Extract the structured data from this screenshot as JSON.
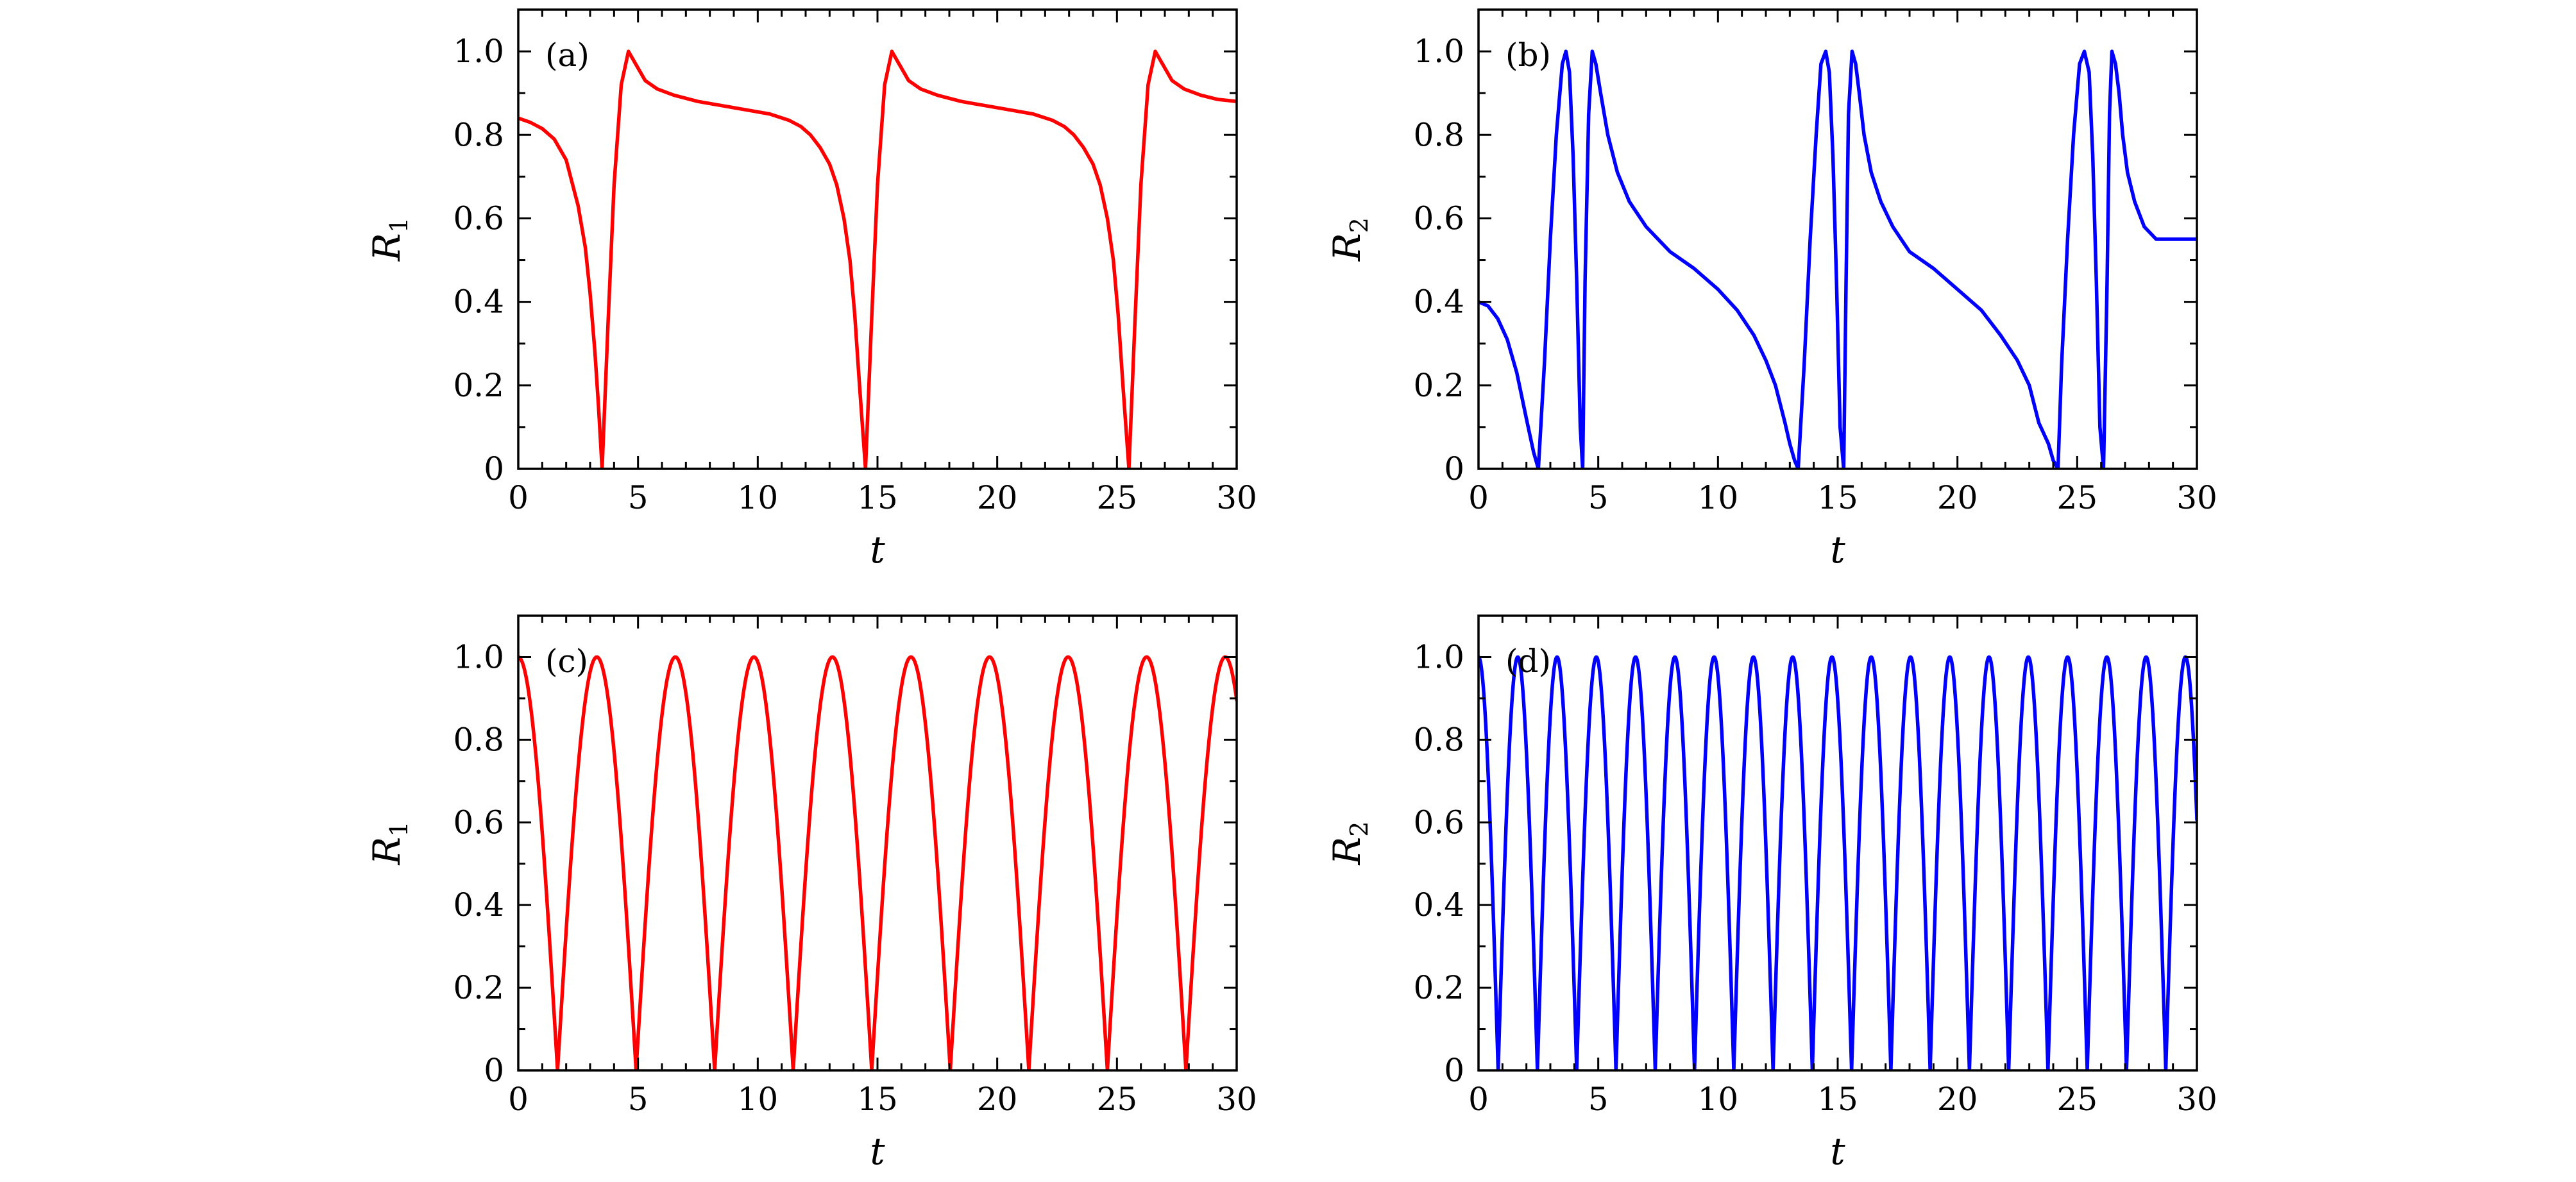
{
  "chart_data": [
    {
      "type": "line",
      "panel_label": "(a)",
      "xlabel": "t",
      "ylabel_base": "R",
      "ylabel_sub": "1",
      "xlim": [
        0,
        30
      ],
      "ylim": [
        0,
        1.1
      ],
      "x_ticks": [
        "0",
        "5",
        "10",
        "15",
        "20",
        "25",
        "30"
      ],
      "y_ticks": [
        "0",
        "0.2",
        "0.4",
        "0.6",
        "0.8",
        "1.0"
      ],
      "color": "#ff0000",
      "series": [
        {
          "x": [
            0,
            0.5,
            1,
            1.5,
            2,
            2.5,
            2.8,
            3.0,
            3.2,
            3.35,
            3.5,
            3.75,
            4.0,
            4.3,
            4.6,
            4.9,
            5.3,
            5.8,
            6.5,
            7.5,
            8.5,
            9.5,
            10.5,
            11.3,
            11.8,
            12.2,
            12.6,
            13.0,
            13.3,
            13.6,
            13.85,
            14.05,
            14.25,
            14.4,
            14.5,
            14.75,
            15.0,
            15.3,
            15.6,
            15.9,
            16.3,
            16.8,
            17.5,
            18.5,
            19.5,
            20.5,
            21.5,
            22.3,
            22.8,
            23.2,
            23.6,
            24.0,
            24.3,
            24.6,
            24.85,
            25.05,
            25.25,
            25.4,
            25.5,
            25.75,
            26.0,
            26.3,
            26.6,
            26.9,
            27.3,
            27.8,
            28.5,
            29.2,
            30
          ],
          "y": [
            0.84,
            0.83,
            0.815,
            0.79,
            0.74,
            0.63,
            0.53,
            0.42,
            0.28,
            0.15,
            0.0,
            0.35,
            0.68,
            0.92,
            1.0,
            0.97,
            0.93,
            0.91,
            0.895,
            0.88,
            0.87,
            0.86,
            0.85,
            0.835,
            0.82,
            0.8,
            0.77,
            0.73,
            0.68,
            0.6,
            0.5,
            0.37,
            0.2,
            0.08,
            0.0,
            0.35,
            0.68,
            0.92,
            1.0,
            0.97,
            0.93,
            0.91,
            0.895,
            0.88,
            0.87,
            0.86,
            0.85,
            0.835,
            0.82,
            0.8,
            0.77,
            0.73,
            0.68,
            0.6,
            0.5,
            0.37,
            0.2,
            0.08,
            0.0,
            0.35,
            0.68,
            0.92,
            1.0,
            0.97,
            0.93,
            0.91,
            0.895,
            0.885,
            0.88
          ]
        }
      ]
    },
    {
      "type": "line",
      "panel_label": "(b)",
      "xlabel": "t",
      "ylabel_base": "R",
      "ylabel_sub": "2",
      "xlim": [
        0,
        30
      ],
      "ylim": [
        0,
        1.1
      ],
      "x_ticks": [
        "0",
        "5",
        "10",
        "15",
        "20",
        "25",
        "30"
      ],
      "y_ticks": [
        "0",
        "0.2",
        "0.4",
        "0.6",
        "0.8",
        "1.0"
      ],
      "color": "#0000ff",
      "series": [
        {
          "x": [
            0,
            0.4,
            0.8,
            1.2,
            1.6,
            2.0,
            2.3,
            2.5,
            2.75,
            3.0,
            3.25,
            3.5,
            3.65,
            3.8,
            3.95,
            4.1,
            4.25,
            4.35,
            4.45,
            4.6,
            4.75,
            4.9,
            5.1,
            5.4,
            5.8,
            6.3,
            7.0,
            8.0,
            9.0,
            10.0,
            10.8,
            11.5,
            12.0,
            12.4,
            12.8,
            13.0,
            13.2,
            13.35,
            13.6,
            13.85,
            14.1,
            14.3,
            14.5,
            14.65,
            14.8,
            14.95,
            15.1,
            15.25,
            15.35,
            15.45,
            15.6,
            15.75,
            15.9,
            16.1,
            16.4,
            16.8,
            17.3,
            18.0,
            19.0,
            20.0,
            21.0,
            21.8,
            22.5,
            23.0,
            23.4,
            23.8,
            24.0,
            24.2,
            24.35,
            24.6,
            24.85,
            25.1,
            25.3,
            25.5,
            25.65,
            25.8,
            25.95,
            26.1,
            26.25,
            26.35,
            26.45,
            26.6,
            26.75,
            26.9,
            27.1,
            27.4,
            27.8,
            28.3,
            29.0,
            30.0
          ],
          "y": [
            0.4,
            0.39,
            0.36,
            0.31,
            0.23,
            0.12,
            0.04,
            0.0,
            0.25,
            0.55,
            0.8,
            0.97,
            1.0,
            0.95,
            0.75,
            0.45,
            0.1,
            0.0,
            0.45,
            0.85,
            1.0,
            0.97,
            0.9,
            0.8,
            0.71,
            0.64,
            0.58,
            0.52,
            0.48,
            0.43,
            0.38,
            0.32,
            0.26,
            0.2,
            0.11,
            0.06,
            0.02,
            0.0,
            0.25,
            0.55,
            0.8,
            0.97,
            1.0,
            0.95,
            0.75,
            0.45,
            0.1,
            0.0,
            0.45,
            0.85,
            1.0,
            0.97,
            0.9,
            0.8,
            0.71,
            0.64,
            0.58,
            0.52,
            0.48,
            0.43,
            0.38,
            0.32,
            0.26,
            0.2,
            0.11,
            0.06,
            0.02,
            0.0,
            0.25,
            0.55,
            0.8,
            0.97,
            1.0,
            0.95,
            0.75,
            0.45,
            0.1,
            0.0,
            0.45,
            0.85,
            1.0,
            0.97,
            0.9,
            0.8,
            0.71,
            0.64,
            0.58,
            0.55,
            0.55,
            0.55
          ]
        }
      ]
    },
    {
      "type": "line",
      "panel_label": "(c)",
      "xlabel": "t",
      "ylabel_base": "R",
      "ylabel_sub": "1",
      "xlim": [
        0,
        30
      ],
      "ylim": [
        0,
        1.1
      ],
      "x_ticks": [
        "0",
        "5",
        "10",
        "15",
        "20",
        "25",
        "30"
      ],
      "y_ticks": [
        "0",
        "0.2",
        "0.4",
        "0.6",
        "0.8",
        "1.0"
      ],
      "color": "#ff0000",
      "curve": {
        "kind": "periodic_abs",
        "period": 3.28,
        "first_peak": 0.0,
        "t_start": 0,
        "t_end": 30
      }
    },
    {
      "type": "line",
      "panel_label": "(d)",
      "xlabel": "t",
      "ylabel_base": "R",
      "ylabel_sub": "2",
      "xlim": [
        0,
        30
      ],
      "ylim": [
        0,
        1.1
      ],
      "x_ticks": [
        "0",
        "5",
        "10",
        "15",
        "20",
        "25",
        "30"
      ],
      "y_ticks": [
        "0",
        "0.2",
        "0.4",
        "0.6",
        "0.8",
        "1.0"
      ],
      "color": "#0000ff",
      "curve": {
        "kind": "periodic_abs",
        "period": 1.64,
        "first_peak": 0.0,
        "t_start": 0,
        "t_end": 30
      }
    }
  ]
}
